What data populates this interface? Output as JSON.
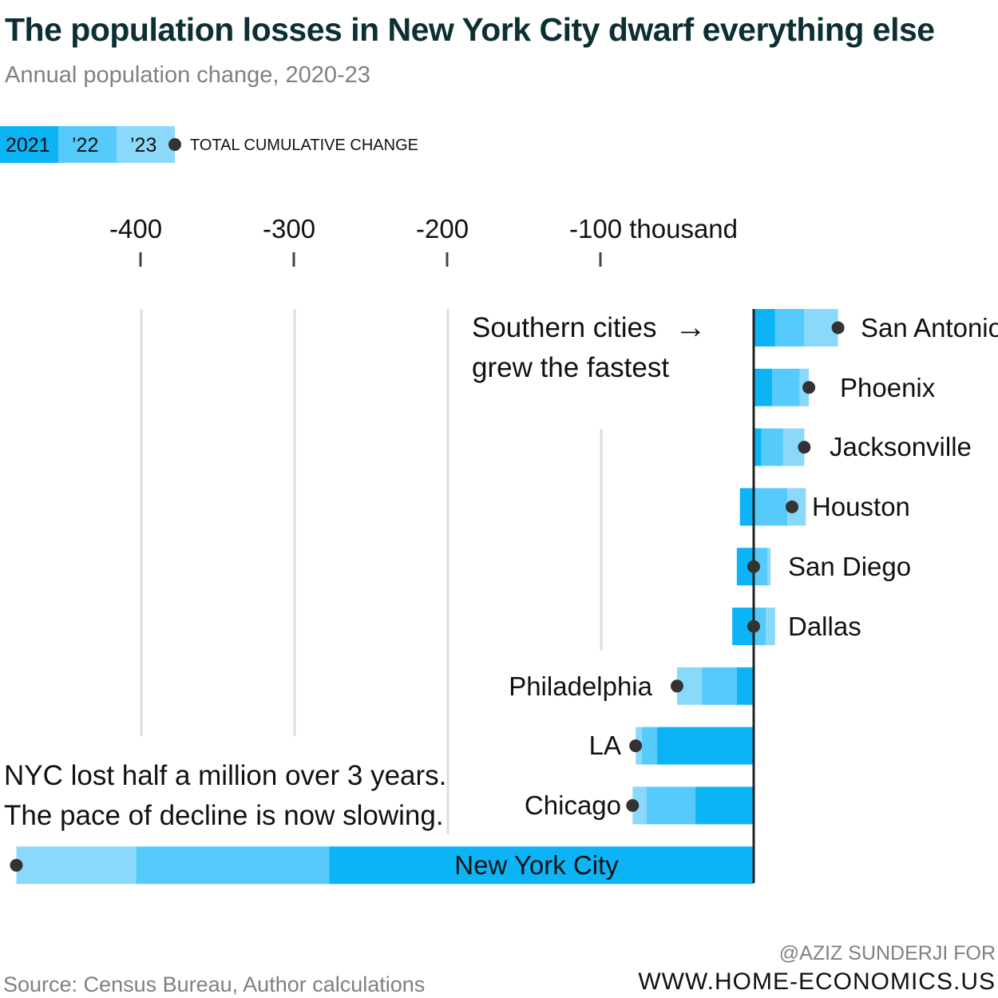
{
  "header": {
    "title": "The population losses in New York City dwarf everything else",
    "subtitle": "Annual population change, 2020-23"
  },
  "footer": {
    "source": "Source: Census Bureau, Author calculations",
    "credit_line1": "@AZIZ SUNDERJI FOR",
    "credit_line2": "WWW.HOME-ECONOMICS.US"
  },
  "legend": {
    "items": [
      {
        "label": "2021",
        "color": "#0db4f5"
      },
      {
        "label": "’22",
        "color": "#56cafa"
      },
      {
        "label": "’23",
        "color": "#8ad9fb"
      }
    ],
    "dot_label": "TOTAL CUMULATIVE CHANGE",
    "dot_color": "#333333"
  },
  "annotations": {
    "southern_line1": "Southern cities",
    "southern_line2": "grew the fastest",
    "southern_arrow": "→",
    "nyc_line1": "NYC lost half a million over 3 years.",
    "nyc_line2": "The pace of decline is now slowing."
  },
  "chart_data": {
    "type": "bar",
    "orientation": "horizontal",
    "stacked": true,
    "title": "The population losses in New York City dwarf everything else",
    "subtitle": "Annual population change, 2020-23",
    "units": "thousand",
    "xlim": [
      -480,
      60
    ],
    "ticks": [
      {
        "value": -400,
        "label": "-400"
      },
      {
        "value": -300,
        "label": "-300"
      },
      {
        "value": -200,
        "label": "-200"
      },
      {
        "value": -100,
        "label": "-100 thousand"
      }
    ],
    "series_names": [
      "2021",
      "’22",
      "’23"
    ],
    "categories": [
      "San Antonio",
      "Phoenix",
      "Jacksonville",
      "Houston",
      "San Diego",
      "Dallas",
      "Philadelphia",
      "LA",
      "Chicago",
      "New York City"
    ],
    "series": [
      {
        "name": "2021",
        "values": [
          14,
          12,
          5,
          -9,
          -11,
          -14,
          -11,
          -63,
          -38,
          -277
        ]
      },
      {
        "name": "’22",
        "values": [
          19,
          18,
          14,
          22,
          9,
          8,
          -23,
          -10,
          -32,
          -126
        ]
      },
      {
        "name": "’23",
        "values": [
          22,
          6,
          14,
          12,
          2,
          6,
          -16,
          -4,
          -9,
          -78
        ]
      }
    ],
    "totals": [
      55,
      36,
      33,
      25,
      0,
      0,
      -50,
      -77,
      -79,
      -481
    ]
  }
}
